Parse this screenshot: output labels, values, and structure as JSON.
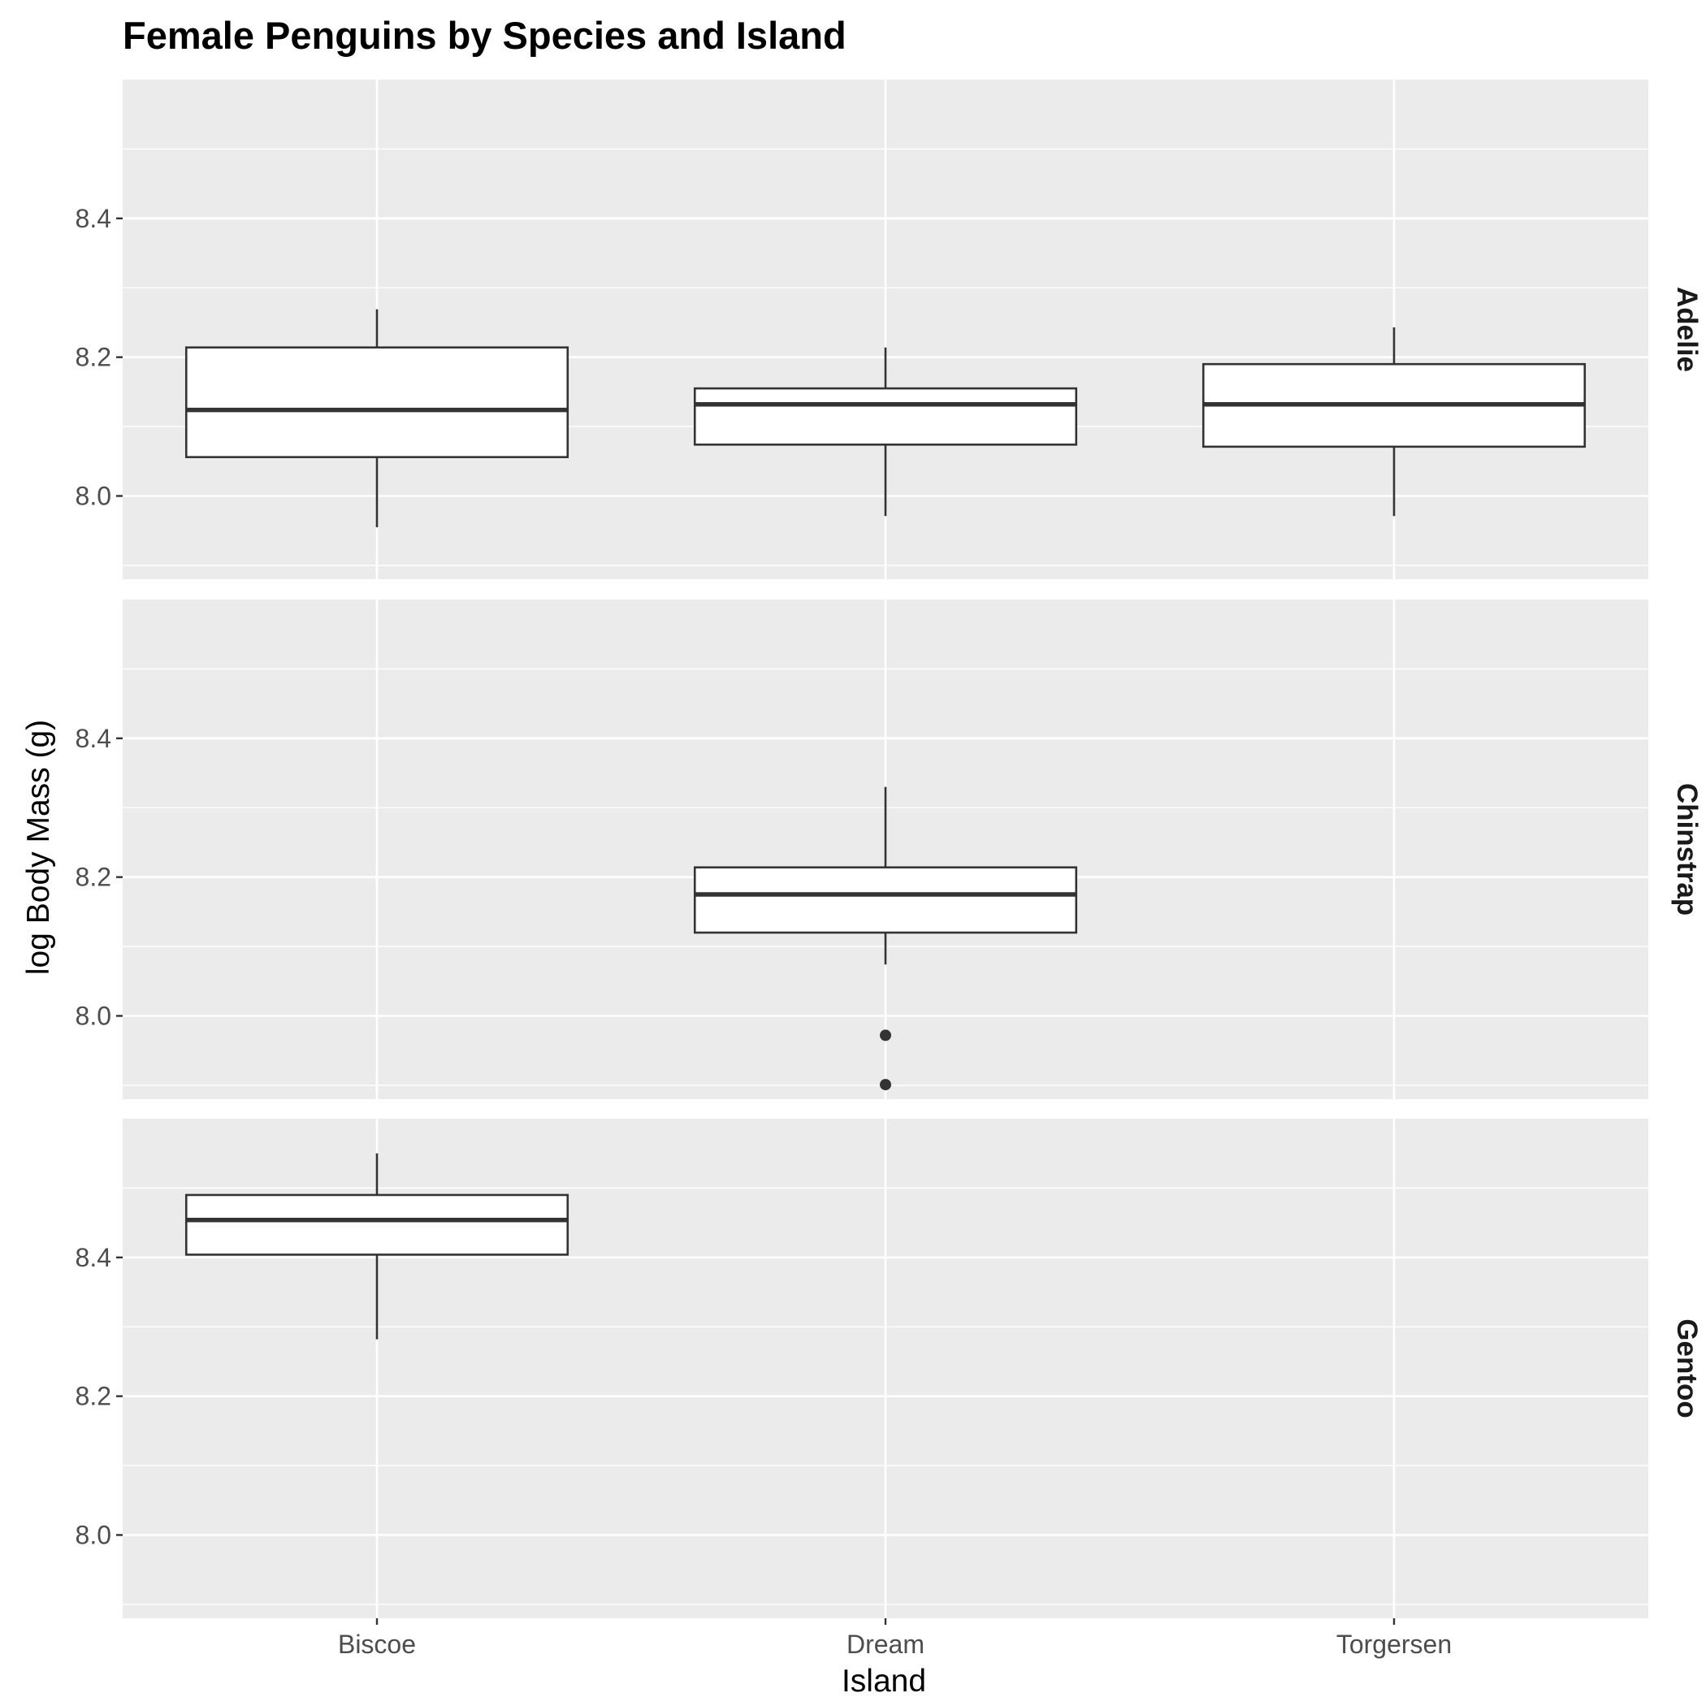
{
  "chart_data": {
    "type": "boxplot",
    "title": "Female Penguins by Species and Island",
    "xlabel": "Island",
    "ylabel": "log Body Mass (g)",
    "categories": [
      "Biscoe",
      "Dream",
      "Torgersen"
    ],
    "ylim": [
      7.88,
      8.6
    ],
    "yticks": [
      8.0,
      8.2,
      8.4
    ],
    "ytick_labels": [
      "8.0",
      "8.2",
      "8.4"
    ],
    "grid": true,
    "facets": [
      {
        "label": "Adelie",
        "boxes": [
          {
            "category": "Biscoe",
            "whisker_low": 7.955,
            "q1": 8.056,
            "median": 8.124,
            "q3": 8.214,
            "whisker_high": 8.269,
            "outliers": []
          },
          {
            "category": "Dream",
            "whisker_low": 7.971,
            "q1": 8.074,
            "median": 8.132,
            "q3": 8.155,
            "whisker_high": 8.214,
            "outliers": []
          },
          {
            "category": "Torgersen",
            "whisker_low": 7.971,
            "q1": 8.071,
            "median": 8.132,
            "q3": 8.19,
            "whisker_high": 8.243,
            "outliers": []
          }
        ]
      },
      {
        "label": "Chinstrap",
        "boxes": [
          {
            "category": "Dream",
            "whisker_low": 8.074,
            "q1": 8.12,
            "median": 8.175,
            "q3": 8.214,
            "whisker_high": 8.33,
            "outliers": [
              7.972,
              7.901
            ]
          }
        ]
      },
      {
        "label": "Gentoo",
        "boxes": [
          {
            "category": "Biscoe",
            "whisker_low": 8.282,
            "q1": 8.404,
            "median": 8.454,
            "q3": 8.49,
            "whisker_high": 8.55,
            "outliers": []
          }
        ]
      }
    ],
    "colors": {
      "panel_background": "#ebebeb",
      "grid": "#ffffff",
      "box_fill": "#ffffff",
      "box_stroke": "#333333",
      "tick_text": "#4d4d4d",
      "tick_mark": "#333333",
      "strip_text": "#1a1a1a"
    }
  }
}
